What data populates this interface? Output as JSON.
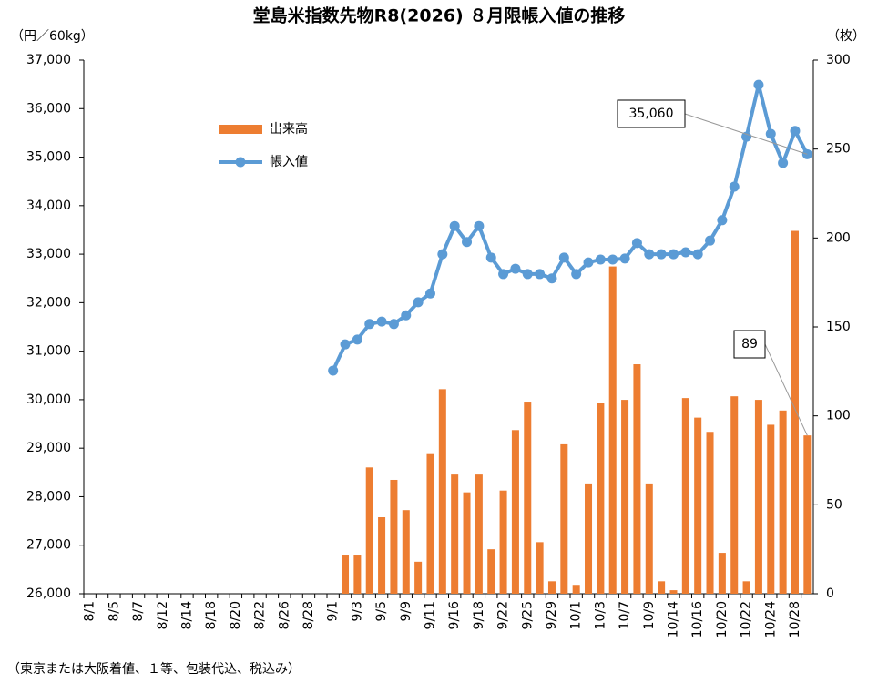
{
  "chart_data": {
    "type": "bar_line",
    "title": "堂島米指数先物R8(2026) ８月限帳入値の推移",
    "ylabel": "（円／60kg）",
    "y2label": "（枚）",
    "footnote": "（東京または大阪着値、１等、包装代込、税込み）",
    "categories": [
      "8/1",
      null,
      "8/5",
      null,
      "8/7",
      null,
      "8/12",
      null,
      "8/14",
      null,
      "8/18",
      null,
      "8/20",
      null,
      "8/22",
      null,
      "8/26",
      null,
      "8/28",
      null,
      "9/1",
      null,
      "9/3",
      null,
      "9/5",
      null,
      "9/9",
      null,
      "9/11",
      null,
      "9/16",
      null,
      "9/18",
      null,
      "9/22",
      null,
      "9/25",
      null,
      "9/29",
      null,
      "10/1",
      null,
      "10/3",
      null,
      "10/7",
      null,
      "10/9",
      null,
      "10/14",
      null,
      "10/16",
      null,
      "10/20",
      null,
      "10/22",
      null,
      "10/24",
      null,
      "10/28",
      null
    ],
    "series": [
      {
        "name": "出来高",
        "type": "bar",
        "axis": "y2",
        "color": "#ED7D31",
        "values": [
          null,
          null,
          null,
          null,
          null,
          null,
          null,
          null,
          null,
          null,
          null,
          null,
          null,
          null,
          null,
          null,
          null,
          null,
          null,
          null,
          null,
          22,
          22,
          71,
          43,
          64,
          47,
          18,
          79,
          115,
          67,
          57,
          67,
          25,
          58,
          92,
          108,
          29,
          7,
          84,
          5,
          62,
          107,
          184,
          109,
          129,
          62,
          7,
          2,
          110,
          99,
          91,
          23,
          111,
          7,
          109,
          95,
          103,
          204,
          89
        ],
        "value_labels": [
          null,
          null,
          null,
          null,
          null,
          null,
          null,
          null,
          null,
          null,
          null,
          null,
          null,
          null,
          null,
          null,
          null,
          null,
          null,
          null,
          null,
          null,
          null,
          null,
          null,
          null,
          null,
          null,
          null,
          null,
          null,
          null,
          null,
          null,
          null,
          null,
          null,
          null,
          null,
          null,
          null,
          null,
          null,
          null,
          null,
          null,
          null,
          null,
          null,
          null,
          null,
          null,
          null,
          null,
          null,
          null,
          null,
          null,
          null,
          "89"
        ]
      },
      {
        "name": "帳入値",
        "type": "line",
        "color": "#5B9BD5",
        "values": [
          null,
          null,
          null,
          null,
          null,
          null,
          null,
          null,
          null,
          null,
          null,
          null,
          null,
          null,
          null,
          null,
          null,
          null,
          null,
          null,
          30600,
          31140,
          31240,
          31560,
          31610,
          31560,
          31740,
          32010,
          32190,
          33000,
          33580,
          33250,
          33580,
          32930,
          32590,
          32700,
          32590,
          32590,
          32500,
          32930,
          32590,
          32830,
          32890,
          32890,
          32910,
          33230,
          33000,
          33000,
          33000,
          33040,
          33000,
          33280,
          33700,
          34390,
          35420,
          36490,
          35480,
          34880,
          35540,
          35060
        ],
        "value_labels": [
          null,
          null,
          null,
          null,
          null,
          null,
          null,
          null,
          null,
          null,
          null,
          null,
          null,
          null,
          null,
          null,
          null,
          null,
          null,
          null,
          null,
          null,
          null,
          null,
          null,
          null,
          null,
          null,
          null,
          null,
          null,
          null,
          null,
          null,
          null,
          null,
          null,
          null,
          null,
          null,
          null,
          null,
          null,
          null,
          null,
          null,
          null,
          null,
          null,
          null,
          null,
          null,
          null,
          null,
          null,
          null,
          null,
          null,
          null,
          "35,060"
        ]
      }
    ],
    "ylim": [
      26000,
      37000
    ],
    "yticks": [
      {
        "value": 26000,
        "label": "26,000"
      },
      {
        "value": 27000,
        "label": "27,000"
      },
      {
        "value": 28000,
        "label": "28,000"
      },
      {
        "value": 29000,
        "label": "29,000"
      },
      {
        "value": 30000,
        "label": "30,000"
      },
      {
        "value": 31000,
        "label": "31,000"
      },
      {
        "value": 32000,
        "label": "32,000"
      },
      {
        "value": 33000,
        "label": "33,000"
      },
      {
        "value": 34000,
        "label": "34,000"
      },
      {
        "value": 35000,
        "label": "35,000"
      },
      {
        "value": 36000,
        "label": "36,000"
      },
      {
        "value": 37000,
        "label": "37,000"
      }
    ],
    "y2lim": [
      0,
      300
    ],
    "y2ticks": [
      0,
      50,
      100,
      150,
      200,
      250,
      300
    ],
    "grid": false
  }
}
